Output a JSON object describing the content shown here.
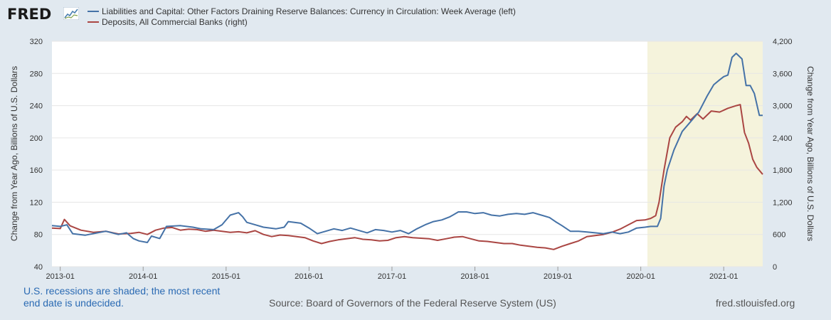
{
  "brand": {
    "name": "FRED"
  },
  "legend": {
    "series1": "Liabilities and Capital: Other Factors Draining Reserve Balances: Currency in Circulation: Week Average (left)",
    "series2": "Deposits, All Commercial Banks (right)"
  },
  "footer": {
    "note": "U.S. recessions are shaded; the most recent end date is undecided.",
    "source": "Source: Board of Governors of the Federal Reserve System (US)",
    "credit": "fred.stlouisfed.org"
  },
  "colors": {
    "series1": "#4572a7",
    "series2": "#aa4643",
    "recession": "#f5f3dc",
    "grid": "#e6e6e6",
    "background": "#e1e9f0"
  },
  "chart_data": {
    "type": "line",
    "title": "",
    "xlabel": "",
    "ylabel_left": "Change from Year Ago, Billions of U.S. Dollars",
    "ylabel_right": "Change from Year Ago, Billions of U.S. Dollars",
    "x_range": [
      2012.9,
      2021.47
    ],
    "ylim_left": [
      40,
      320
    ],
    "ylim_right": [
      0,
      4200
    ],
    "yticks_left": [
      40,
      80,
      120,
      160,
      200,
      240,
      280,
      320
    ],
    "yticks_right": [
      0,
      600,
      1200,
      1800,
      2400,
      3000,
      3600,
      4200
    ],
    "ytick_labels_right": [
      "0",
      "600",
      "1,200",
      "1,800",
      "2,400",
      "3,000",
      "3,600",
      "4,200"
    ],
    "xticks": [
      {
        "x": 2013.0,
        "label": "2013-01"
      },
      {
        "x": 2014.0,
        "label": "2014-01"
      },
      {
        "x": 2015.0,
        "label": "2015-01"
      },
      {
        "x": 2016.0,
        "label": "2016-01"
      },
      {
        "x": 2017.0,
        "label": "2017-01"
      },
      {
        "x": 2018.0,
        "label": "2018-01"
      },
      {
        "x": 2019.0,
        "label": "2019-01"
      },
      {
        "x": 2020.0,
        "label": "2020-01"
      },
      {
        "x": 2021.0,
        "label": "2021-01"
      }
    ],
    "recession": {
      "start": 2020.08,
      "end": 2021.47
    },
    "series": [
      {
        "name": "Liabilities and Capital: Other Factors Draining Reserve Balances: Currency in Circulation: Week Average (left)",
        "axis": "left",
        "points": [
          [
            2012.9,
            91
          ],
          [
            2013.0,
            90
          ],
          [
            2013.08,
            92
          ],
          [
            2013.15,
            81
          ],
          [
            2013.3,
            79
          ],
          [
            2013.45,
            82
          ],
          [
            2013.55,
            84
          ],
          [
            2013.7,
            80
          ],
          [
            2013.8,
            82
          ],
          [
            2013.88,
            75
          ],
          [
            2013.95,
            72
          ],
          [
            2014.05,
            70
          ],
          [
            2014.1,
            78
          ],
          [
            2014.2,
            75
          ],
          [
            2014.28,
            90
          ],
          [
            2014.45,
            91
          ],
          [
            2014.6,
            89
          ],
          [
            2014.7,
            87
          ],
          [
            2014.85,
            86
          ],
          [
            2014.95,
            92
          ],
          [
            2015.05,
            104
          ],
          [
            2015.15,
            107
          ],
          [
            2015.2,
            102
          ],
          [
            2015.25,
            95
          ],
          [
            2015.35,
            92
          ],
          [
            2015.45,
            89
          ],
          [
            2015.6,
            87
          ],
          [
            2015.7,
            89
          ],
          [
            2015.75,
            96
          ],
          [
            2015.9,
            94
          ],
          [
            2016.0,
            88
          ],
          [
            2016.1,
            81
          ],
          [
            2016.2,
            84
          ],
          [
            2016.3,
            87
          ],
          [
            2016.4,
            85
          ],
          [
            2016.5,
            88
          ],
          [
            2016.6,
            85
          ],
          [
            2016.7,
            82
          ],
          [
            2016.8,
            86
          ],
          [
            2016.9,
            85
          ],
          [
            2017.0,
            83
          ],
          [
            2017.1,
            85
          ],
          [
            2017.2,
            81
          ],
          [
            2017.3,
            87
          ],
          [
            2017.4,
            92
          ],
          [
            2017.5,
            96
          ],
          [
            2017.6,
            98
          ],
          [
            2017.7,
            102
          ],
          [
            2017.8,
            108
          ],
          [
            2017.9,
            108
          ],
          [
            2018.0,
            106
          ],
          [
            2018.1,
            107
          ],
          [
            2018.2,
            104
          ],
          [
            2018.3,
            103
          ],
          [
            2018.4,
            105
          ],
          [
            2018.5,
            106
          ],
          [
            2018.6,
            105
          ],
          [
            2018.7,
            107
          ],
          [
            2018.8,
            104
          ],
          [
            2018.9,
            101
          ],
          [
            2018.97,
            96
          ],
          [
            2019.05,
            91
          ],
          [
            2019.15,
            84
          ],
          [
            2019.25,
            84
          ],
          [
            2019.35,
            83
          ],
          [
            2019.45,
            82
          ],
          [
            2019.55,
            81
          ],
          [
            2019.65,
            83
          ],
          [
            2019.75,
            81
          ],
          [
            2019.85,
            83
          ],
          [
            2019.95,
            88
          ],
          [
            2020.05,
            89
          ],
          [
            2020.12,
            90
          ],
          [
            2020.2,
            90
          ],
          [
            2020.24,
            100
          ],
          [
            2020.28,
            140
          ],
          [
            2020.32,
            160
          ],
          [
            2020.4,
            185
          ],
          [
            2020.5,
            208
          ],
          [
            2020.6,
            220
          ],
          [
            2020.7,
            232
          ],
          [
            2020.8,
            252
          ],
          [
            2020.88,
            266
          ],
          [
            2020.95,
            272
          ],
          [
            2021.0,
            276
          ],
          [
            2021.05,
            278
          ],
          [
            2021.1,
            300
          ],
          [
            2021.15,
            305
          ],
          [
            2021.22,
            298
          ],
          [
            2021.27,
            265
          ],
          [
            2021.32,
            265
          ],
          [
            2021.37,
            255
          ],
          [
            2021.43,
            228
          ],
          [
            2021.47,
            228
          ]
        ]
      },
      {
        "name": "Deposits, All Commercial Banks (right)",
        "axis": "right",
        "points": [
          [
            2012.9,
            720
          ],
          [
            2013.0,
            710
          ],
          [
            2013.05,
            880
          ],
          [
            2013.12,
            760
          ],
          [
            2013.25,
            680
          ],
          [
            2013.4,
            640
          ],
          [
            2013.55,
            660
          ],
          [
            2013.7,
            610
          ],
          [
            2013.85,
            620
          ],
          [
            2013.95,
            640
          ],
          [
            2014.05,
            600
          ],
          [
            2014.15,
            680
          ],
          [
            2014.25,
            720
          ],
          [
            2014.35,
            730
          ],
          [
            2014.45,
            680
          ],
          [
            2014.55,
            700
          ],
          [
            2014.65,
            690
          ],
          [
            2014.75,
            660
          ],
          [
            2014.85,
            680
          ],
          [
            2014.95,
            660
          ],
          [
            2015.05,
            640
          ],
          [
            2015.15,
            650
          ],
          [
            2015.25,
            630
          ],
          [
            2015.35,
            670
          ],
          [
            2015.45,
            600
          ],
          [
            2015.55,
            560
          ],
          [
            2015.65,
            590
          ],
          [
            2015.75,
            580
          ],
          [
            2015.85,
            560
          ],
          [
            2015.95,
            540
          ],
          [
            2016.05,
            480
          ],
          [
            2016.15,
            430
          ],
          [
            2016.25,
            470
          ],
          [
            2016.35,
            500
          ],
          [
            2016.45,
            520
          ],
          [
            2016.55,
            540
          ],
          [
            2016.65,
            510
          ],
          [
            2016.75,
            500
          ],
          [
            2016.85,
            480
          ],
          [
            2016.95,
            490
          ],
          [
            2017.05,
            540
          ],
          [
            2017.15,
            560
          ],
          [
            2017.25,
            540
          ],
          [
            2017.35,
            530
          ],
          [
            2017.45,
            520
          ],
          [
            2017.55,
            490
          ],
          [
            2017.65,
            520
          ],
          [
            2017.75,
            550
          ],
          [
            2017.85,
            560
          ],
          [
            2017.95,
            520
          ],
          [
            2018.05,
            480
          ],
          [
            2018.15,
            470
          ],
          [
            2018.25,
            450
          ],
          [
            2018.35,
            430
          ],
          [
            2018.45,
            430
          ],
          [
            2018.55,
            400
          ],
          [
            2018.65,
            380
          ],
          [
            2018.75,
            360
          ],
          [
            2018.85,
            350
          ],
          [
            2018.95,
            320
          ],
          [
            2019.05,
            380
          ],
          [
            2019.15,
            430
          ],
          [
            2019.25,
            480
          ],
          [
            2019.35,
            560
          ],
          [
            2019.45,
            580
          ],
          [
            2019.55,
            600
          ],
          [
            2019.65,
            640
          ],
          [
            2019.75,
            700
          ],
          [
            2019.85,
            780
          ],
          [
            2019.95,
            860
          ],
          [
            2020.05,
            870
          ],
          [
            2020.12,
            900
          ],
          [
            2020.18,
            950
          ],
          [
            2020.22,
            1200
          ],
          [
            2020.28,
            1800
          ],
          [
            2020.35,
            2400
          ],
          [
            2020.42,
            2600
          ],
          [
            2020.5,
            2700
          ],
          [
            2020.55,
            2800
          ],
          [
            2020.6,
            2730
          ],
          [
            2020.68,
            2850
          ],
          [
            2020.75,
            2750
          ],
          [
            2020.85,
            2900
          ],
          [
            2020.95,
            2880
          ],
          [
            2021.05,
            2950
          ],
          [
            2021.15,
            3000
          ],
          [
            2021.2,
            3020
          ],
          [
            2021.25,
            2500
          ],
          [
            2021.3,
            2300
          ],
          [
            2021.35,
            2000
          ],
          [
            2021.4,
            1850
          ],
          [
            2021.47,
            1720
          ]
        ]
      }
    ]
  }
}
